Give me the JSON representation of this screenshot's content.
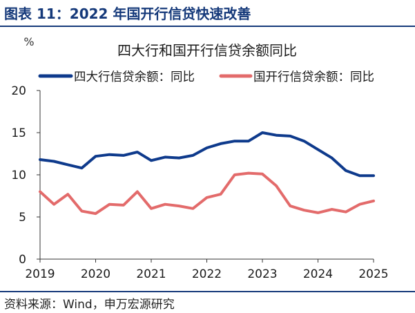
{
  "header": {
    "title": "图表 11：2022 年国开行信贷快速改善"
  },
  "footer": {
    "source": "资料来源：Wind，申万宏源研究"
  },
  "colors": {
    "title": "#15397a",
    "rule": "#15397a",
    "series1": "#0e3a8c",
    "series2": "#e36b6b",
    "axis": "#333333"
  },
  "chart_data": {
    "type": "line",
    "title": "四大行和国开行信贷余额同比",
    "ylabel": "%",
    "xlabel": "",
    "ylim": [
      0,
      20
    ],
    "yticks": [
      0,
      5,
      10,
      15,
      20
    ],
    "xlim": [
      2019,
      2025
    ],
    "xticks": [
      "2019",
      "2020",
      "2021",
      "2022",
      "2023",
      "2024",
      "2025"
    ],
    "grid": false,
    "legend_position": "top",
    "x": [
      2019.0,
      2019.25,
      2019.5,
      2019.75,
      2020.0,
      2020.25,
      2020.5,
      2020.75,
      2021.0,
      2021.25,
      2021.5,
      2021.75,
      2022.0,
      2022.25,
      2022.5,
      2022.75,
      2023.0,
      2023.25,
      2023.5,
      2023.75,
      2024.0,
      2024.25,
      2024.5,
      2024.75,
      2025.0
    ],
    "series": [
      {
        "name": "四大行信贷余额：同比",
        "color": "#0e3a8c",
        "values": [
          11.8,
          11.6,
          11.2,
          10.8,
          12.2,
          12.4,
          12.3,
          12.7,
          11.7,
          12.1,
          12.0,
          12.3,
          13.2,
          13.7,
          14.0,
          14.0,
          15.0,
          14.7,
          14.6,
          14.0,
          13.0,
          12.0,
          10.5,
          9.9,
          9.9
        ]
      },
      {
        "name": "国开行信贷余额：同比",
        "color": "#e36b6b",
        "values": [
          8.0,
          6.5,
          7.7,
          5.7,
          5.4,
          6.5,
          6.4,
          8.0,
          6.0,
          6.5,
          6.3,
          6.0,
          7.3,
          7.7,
          10.0,
          10.2,
          10.1,
          8.7,
          6.3,
          5.8,
          5.5,
          5.9,
          5.6,
          6.5,
          6.9
        ]
      }
    ]
  }
}
